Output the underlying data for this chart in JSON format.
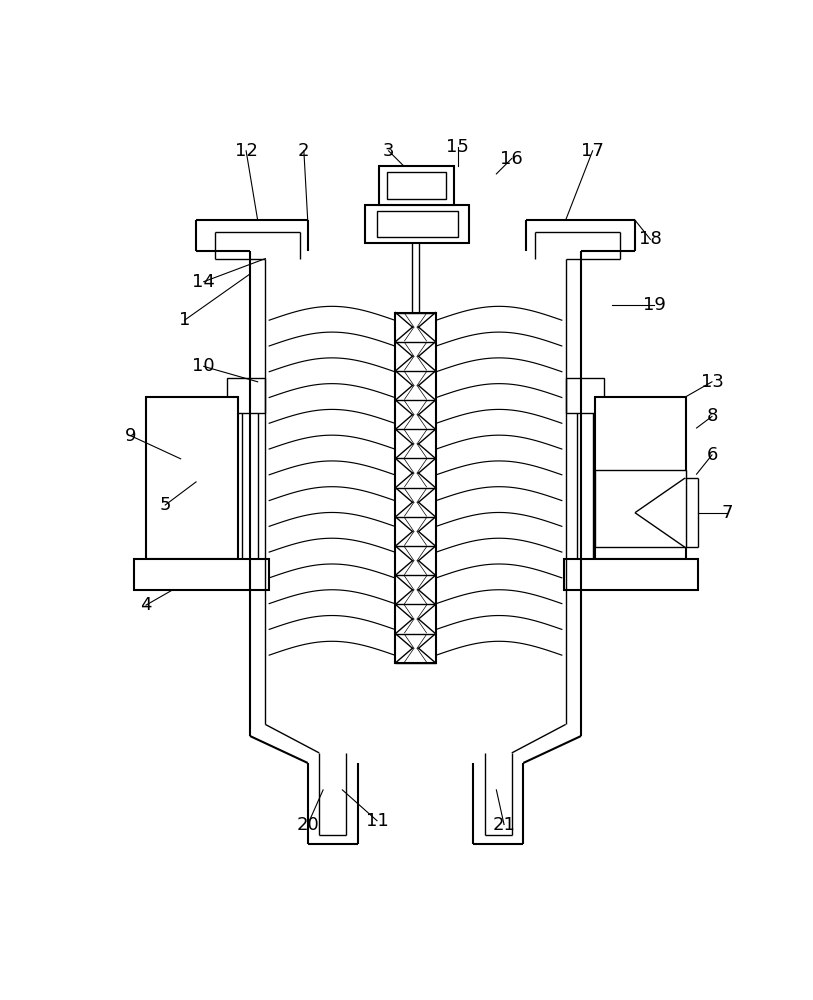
{
  "bg_color": "#ffffff",
  "line_color": "#000000",
  "lw": 1.5,
  "lw_thin": 1.0,
  "fig_width": 8.13,
  "fig_height": 10.0
}
